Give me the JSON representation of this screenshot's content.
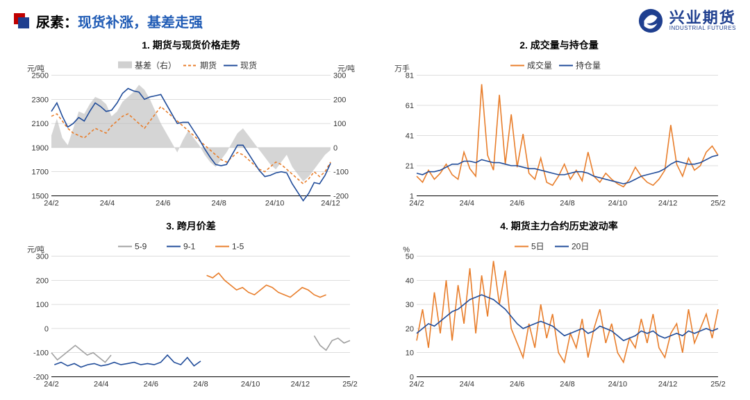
{
  "header": {
    "title_black": "尿素：",
    "title_blue": "现货补涨，基差走强",
    "logo_cn": "兴业期货",
    "logo_en": "INDUSTRIAL FUTURES"
  },
  "colors": {
    "futures": "#e87d2a",
    "spot": "#1f4b99",
    "basis_fill": "#d0d0d0",
    "spread_59": "#a0a0a0",
    "spread_91": "#1f4b99",
    "spread_15": "#e87d2a",
    "vol": "#e87d2a",
    "oi": "#1f4b99",
    "hv5": "#e87d2a",
    "hv20": "#1f4b99",
    "grid": "#bbbbbb",
    "axis": "#000000",
    "bg": "#ffffff"
  },
  "x_ticks": [
    "24/2",
    "24/4",
    "24/6",
    "24/8",
    "24/10",
    "24/12"
  ],
  "x_ticks_ext": [
    "24/2",
    "24/4",
    "24/6",
    "24/8",
    "24/10",
    "24/12",
    "25/2"
  ],
  "panels": {
    "p1": {
      "title": "1. 期货与现货价格走势",
      "y_left_label": "元/吨",
      "y_right_label": "元/吨",
      "y_left": {
        "min": 1500,
        "max": 2500,
        "ticks": [
          1500,
          1700,
          1900,
          2100,
          2300,
          2500
        ]
      },
      "y_right": {
        "min": -200,
        "max": 300,
        "ticks": [
          -200,
          -100,
          0,
          100,
          200,
          300
        ]
      },
      "legend": [
        {
          "label": "基差（右）",
          "type": "area",
          "color": "#d0d0d0"
        },
        {
          "label": "期货",
          "type": "dash",
          "color": "#e87d2a"
        },
        {
          "label": "现货",
          "type": "line",
          "color": "#1f4b99"
        }
      ],
      "series": {
        "basis": [
          50,
          120,
          40,
          10,
          80,
          150,
          140,
          180,
          210,
          200,
          180,
          130,
          150,
          190,
          210,
          230,
          260,
          240,
          200,
          150,
          100,
          60,
          20,
          -20,
          30,
          70,
          40,
          10,
          -30,
          -60,
          -80,
          -50,
          -20,
          20,
          60,
          80,
          50,
          20,
          -10,
          -40,
          -70,
          -90,
          -60,
          -30,
          -80,
          -110,
          -140,
          -120,
          -90,
          -60,
          -30,
          -10
        ],
        "futures": [
          2160,
          2180,
          2120,
          2060,
          2020,
          2000,
          1980,
          2020,
          2060,
          2040,
          2020,
          2080,
          2120,
          2160,
          2180,
          2140,
          2100,
          2060,
          2120,
          2180,
          2240,
          2200,
          2160,
          2120,
          2080,
          2040,
          2000,
          1960,
          1920,
          1880,
          1840,
          1800,
          1780,
          1820,
          1860,
          1840,
          1800,
          1760,
          1720,
          1700,
          1740,
          1780,
          1760,
          1720,
          1680,
          1640,
          1600,
          1640,
          1700,
          1660,
          1700,
          1780
        ],
        "spot": [
          2200,
          2270,
          2160,
          2070,
          2100,
          2150,
          2120,
          2200,
          2270,
          2240,
          2200,
          2210,
          2270,
          2350,
          2390,
          2370,
          2360,
          2300,
          2320,
          2330,
          2340,
          2260,
          2180,
          2100,
          2110,
          2110,
          2040,
          1970,
          1890,
          1820,
          1760,
          1750,
          1760,
          1840,
          1920,
          1920,
          1850,
          1780,
          1710,
          1660,
          1670,
          1690,
          1700,
          1690,
          1600,
          1530,
          1460,
          1520,
          1610,
          1600,
          1670,
          1770
        ]
      }
    },
    "p2": {
      "title": "2. 成交量与持仓量",
      "y_label": "万手",
      "y": {
        "min": 1,
        "max": 81,
        "ticks": [
          1,
          21,
          41,
          61,
          81
        ]
      },
      "legend": [
        {
          "label": "成交量",
          "color": "#e87d2a"
        },
        {
          "label": "持仓量",
          "color": "#1f4b99"
        }
      ],
      "series": {
        "volume": [
          14,
          10,
          18,
          12,
          16,
          22,
          15,
          12,
          30,
          19,
          14,
          75,
          28,
          18,
          68,
          22,
          55,
          20,
          42,
          16,
          12,
          26,
          10,
          8,
          14,
          22,
          12,
          18,
          11,
          30,
          14,
          10,
          16,
          12,
          9,
          7,
          12,
          20,
          14,
          10,
          8,
          12,
          18,
          48,
          22,
          14,
          26,
          18,
          21,
          30,
          34,
          28
        ],
        "oi": [
          16,
          15,
          17,
          17,
          18,
          20,
          22,
          22,
          24,
          24,
          23,
          25,
          24,
          23,
          23,
          22,
          21,
          21,
          20,
          19,
          19,
          18,
          17,
          16,
          15,
          15,
          16,
          17,
          17,
          16,
          14,
          13,
          12,
          11,
          10,
          9,
          10,
          12,
          14,
          15,
          16,
          17,
          19,
          22,
          24,
          23,
          22,
          22,
          23,
          25,
          27,
          28
        ]
      }
    },
    "p3": {
      "title": "3. 跨月价差",
      "y_label": "元/吨",
      "y": {
        "min": -200,
        "max": 300,
        "ticks": [
          -200,
          -100,
          0,
          100,
          200,
          300
        ]
      },
      "legend": [
        {
          "label": "5-9",
          "color": "#a0a0a0"
        },
        {
          "label": "9-1",
          "color": "#1f4b99"
        },
        {
          "label": "1-5",
          "color": "#e87d2a"
        }
      ],
      "series": {
        "s59": {
          "data": [
            -100,
            -130,
            -110,
            -90,
            -70,
            -90,
            -110,
            -100,
            -120,
            -140,
            -110
          ],
          "start_frac": 0.0,
          "end_frac": 0.2,
          "data2": [
            -30,
            -70,
            -90,
            -50,
            -40,
            -60,
            -50
          ],
          "start_frac2": 0.88,
          "end_frac2": 1.0
        },
        "s91": {
          "data": [
            -150,
            -140,
            -155,
            -145,
            -160,
            -150,
            -145,
            -155,
            -150,
            -140,
            -150,
            -145,
            -140,
            -150,
            -145,
            -150,
            -140,
            -110,
            -140,
            -150,
            -120,
            -155,
            -135
          ],
          "start_frac": 0.01,
          "end_frac": 0.5
        },
        "s15": {
          "data": [
            220,
            210,
            230,
            200,
            180,
            160,
            170,
            150,
            140,
            160,
            180,
            170,
            150,
            140,
            130,
            150,
            170,
            160,
            140,
            130,
            140
          ],
          "start_frac": 0.52,
          "end_frac": 0.92
        }
      }
    },
    "p4": {
      "title": "4. 期货主力合约历史波动率",
      "y_label": "%",
      "y": {
        "min": 0,
        "max": 50,
        "ticks": [
          0,
          10,
          20,
          30,
          40,
          50
        ]
      },
      "legend": [
        {
          "label": "5日",
          "color": "#e87d2a"
        },
        {
          "label": "20日",
          "color": "#1f4b99"
        }
      ],
      "series": {
        "hv5": [
          15,
          28,
          12,
          35,
          18,
          40,
          15,
          38,
          22,
          45,
          18,
          42,
          25,
          48,
          30,
          44,
          20,
          14,
          8,
          22,
          12,
          30,
          16,
          26,
          10,
          6,
          18,
          12,
          24,
          8,
          20,
          28,
          14,
          22,
          10,
          6,
          16,
          12,
          24,
          14,
          26,
          12,
          8,
          18,
          22,
          10,
          28,
          14,
          20,
          26,
          16,
          28
        ],
        "hv20": [
          18,
          20,
          22,
          21,
          23,
          25,
          27,
          28,
          30,
          32,
          33,
          34,
          33,
          32,
          30,
          28,
          25,
          22,
          20,
          21,
          22,
          23,
          22,
          21,
          19,
          17,
          18,
          19,
          20,
          18,
          19,
          21,
          20,
          19,
          17,
          15,
          16,
          17,
          19,
          18,
          19,
          17,
          16,
          17,
          18,
          17,
          19,
          18,
          19,
          20,
          19,
          20
        ]
      }
    }
  },
  "styling": {
    "line_width": 1.6,
    "dash_pattern": "4,3",
    "font_size_title": 14,
    "font_size_tick": 11,
    "font_size_legend": 12
  }
}
